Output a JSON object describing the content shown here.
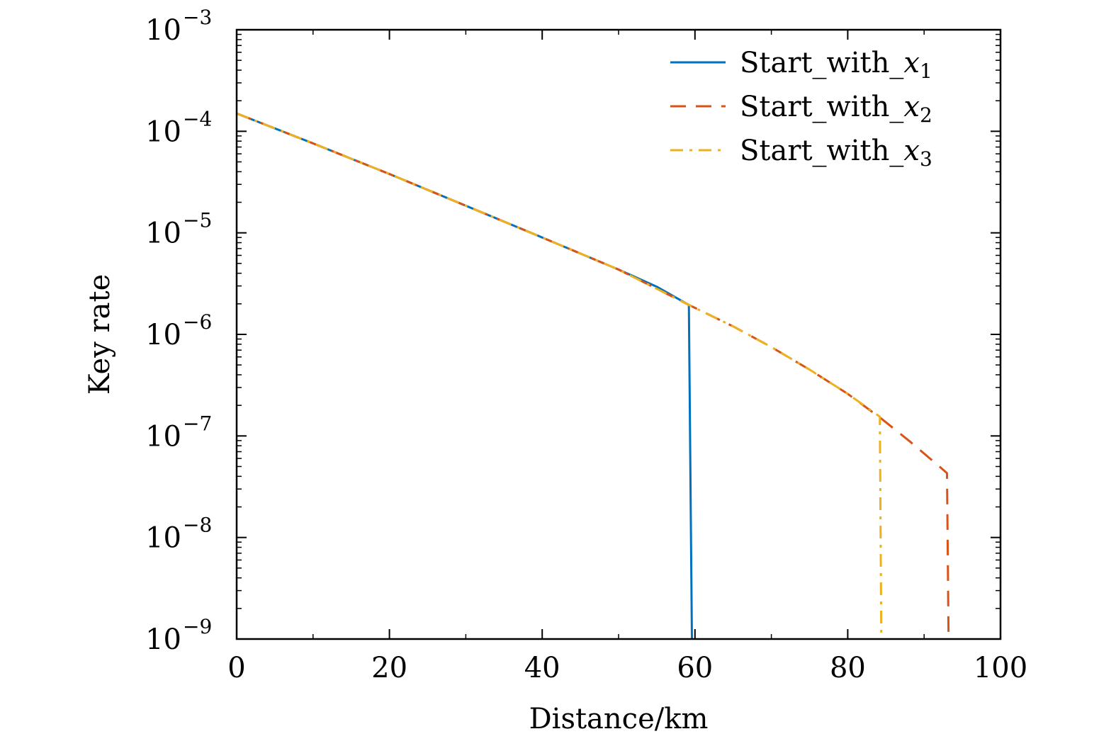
{
  "chart_data": {
    "type": "line",
    "title": "",
    "xlabel": "Distance/km",
    "ylabel": "Key rate",
    "xlim": [
      0,
      100
    ],
    "ylim": [
      1e-09,
      0.001
    ],
    "yscale": "log",
    "grid": false,
    "legend_position": "top-right",
    "x_ticks": [
      {
        "value": 0,
        "label": "0"
      },
      {
        "value": 20,
        "label": "20"
      },
      {
        "value": 40,
        "label": "40"
      },
      {
        "value": 60,
        "label": "60"
      },
      {
        "value": 80,
        "label": "80"
      },
      {
        "value": 100,
        "label": "100"
      }
    ],
    "y_ticks": [
      {
        "exponent": -3,
        "base": "10",
        "exp_label": "−3"
      },
      {
        "exponent": -4,
        "base": "10",
        "exp_label": "−4"
      },
      {
        "exponent": -5,
        "base": "10",
        "exp_label": "−5"
      },
      {
        "exponent": -6,
        "base": "10",
        "exp_label": "−6"
      },
      {
        "exponent": -7,
        "base": "10",
        "exp_label": "−7"
      },
      {
        "exponent": -8,
        "base": "10",
        "exp_label": "−8"
      },
      {
        "exponent": -9,
        "base": "10",
        "exp_label": "−9"
      }
    ],
    "series": [
      {
        "name": "Start_with_x₁",
        "legend_prefix": "Start_with_",
        "legend_var": "x",
        "legend_sub": "1",
        "color": "#0072BD",
        "style": "solid",
        "x": [
          0,
          10,
          20,
          30,
          40,
          50,
          55,
          59.2,
          59.6
        ],
        "y": [
          0.00015,
          7.6e-05,
          3.8e-05,
          1.85e-05,
          9e-06,
          4.35e-06,
          2.95e-06,
          1.95e-06,
          1e-09
        ]
      },
      {
        "name": "Start_with_x₂",
        "legend_prefix": "Start_with_",
        "legend_var": "x",
        "legend_sub": "2",
        "color": "#D95319",
        "style": "dashed",
        "x": [
          0,
          10,
          20,
          30,
          40,
          50,
          59.2,
          65,
          70,
          75,
          80,
          84.3,
          88,
          92,
          93.0,
          93.2
        ],
        "y": [
          0.00015,
          7.6e-05,
          3.8e-05,
          1.85e-05,
          9e-06,
          4.35e-06,
          1.95e-06,
          1.2e-06,
          7.5e-07,
          4.5e-07,
          2.6e-07,
          1.5e-07,
          9e-08,
          5e-08,
          4.3e-08,
          1e-09
        ]
      },
      {
        "name": "Start_with_x₃",
        "legend_prefix": "Start_with_",
        "legend_var": "x",
        "legend_sub": "3",
        "color": "#EDB120",
        "style": "dashdot",
        "x": [
          0,
          10,
          20,
          30,
          40,
          50,
          59.2,
          65,
          70,
          75,
          80,
          84.2,
          84.4
        ],
        "y": [
          0.00015,
          7.6e-05,
          3.8e-05,
          1.85e-05,
          9e-06,
          4.35e-06,
          1.95e-06,
          1.2e-06,
          7.5e-07,
          4.5e-07,
          2.6e-07,
          1.55e-07,
          1e-09
        ]
      }
    ]
  }
}
